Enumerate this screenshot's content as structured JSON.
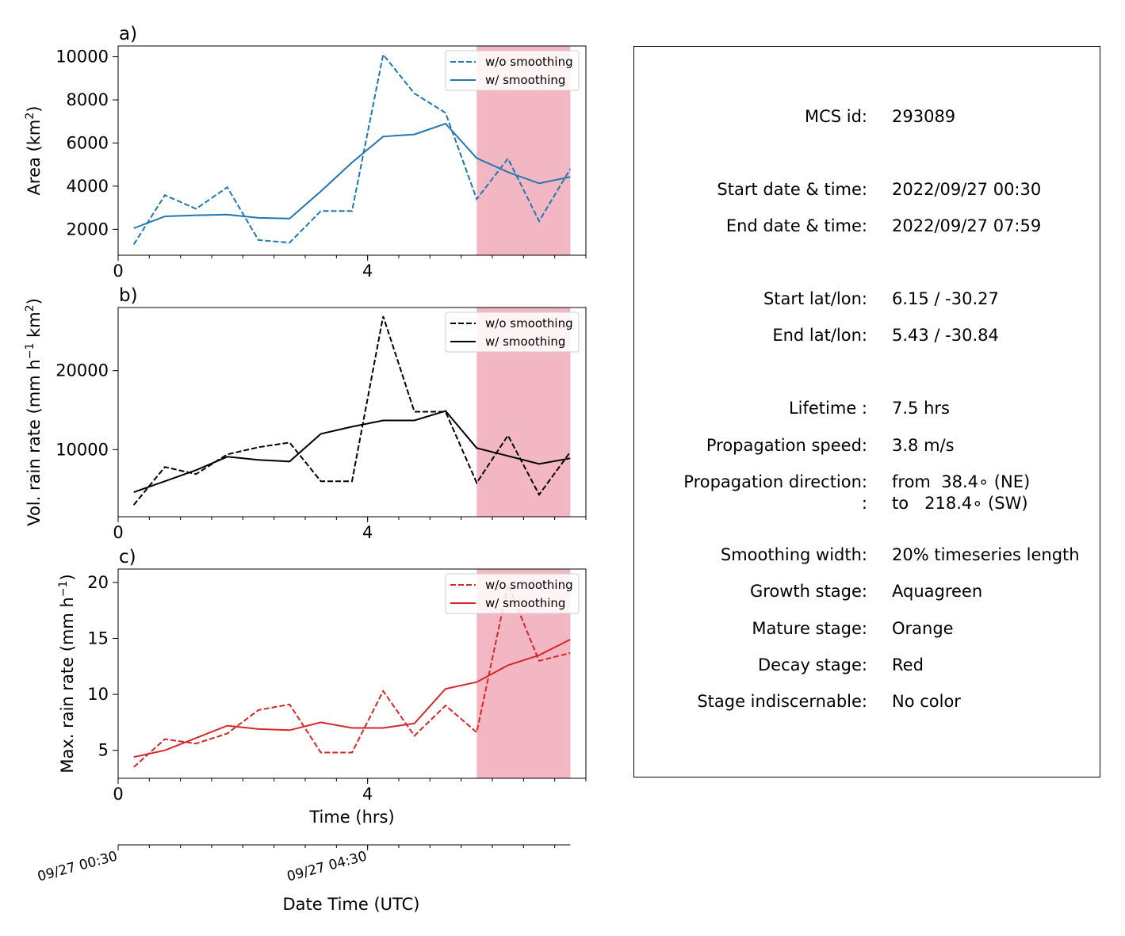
{
  "chart_data": [
    {
      "type": "line",
      "panel": "a)",
      "xlabel": "",
      "ylabel": "Area  (km²)",
      "xlim": [
        0,
        7.5
      ],
      "ylim": [
        800,
        10500
      ],
      "xticks": [
        0,
        4
      ],
      "yticks": [
        2000,
        4000,
        6000,
        8000,
        10000
      ],
      "x_minor_tick_step": 0.5,
      "shaded_x_range": [
        5.75,
        7.25
      ],
      "shade_color": "#f3b7c3",
      "legend": "top-right",
      "x": [
        0.25,
        0.75,
        1.25,
        1.75,
        2.25,
        2.75,
        3.25,
        3.75,
        4.25,
        4.75,
        5.25,
        5.75,
        6.25,
        6.75,
        7.25
      ],
      "series": [
        {
          "name": "w/o smoothing",
          "style": "dashed",
          "color": "#1f77b4",
          "values": [
            1300,
            3580,
            2950,
            3950,
            1500,
            1380,
            2850,
            2850,
            10100,
            8300,
            7400,
            3400,
            5280,
            2380,
            4800
          ]
        },
        {
          "name": "w/ smoothing",
          "style": "solid",
          "color": "#1f77b4",
          "values": [
            2050,
            2600,
            2650,
            2680,
            2530,
            2500,
            3760,
            5100,
            6300,
            6400,
            6900,
            5300,
            4650,
            4130,
            4430
          ]
        }
      ]
    },
    {
      "type": "line",
      "panel": "b)",
      "xlabel": "",
      "ylabel": "Vol. rain rate (mm h⁻¹ km²)",
      "xlim": [
        0,
        7.5
      ],
      "ylim": [
        1500,
        28000
      ],
      "xticks": [
        0,
        4
      ],
      "yticks": [
        10000,
        20000
      ],
      "x_minor_tick_step": 0.5,
      "shaded_x_range": [
        5.75,
        7.25
      ],
      "shade_color": "#f3b7c3",
      "legend": "top-right",
      "x": [
        0.25,
        0.75,
        1.25,
        1.75,
        2.25,
        2.75,
        3.25,
        3.75,
        4.25,
        4.75,
        5.25,
        5.75,
        6.25,
        6.75,
        7.25
      ],
      "series": [
        {
          "name": "w/o smoothing",
          "style": "dashed",
          "color": "#000000",
          "values": [
            3000,
            7800,
            6900,
            9400,
            10300,
            10900,
            6000,
            6000,
            26900,
            14800,
            14800,
            5800,
            11800,
            4300,
            9700
          ]
        },
        {
          "name": "w/ smoothing",
          "style": "solid",
          "color": "#000000",
          "values": [
            4600,
            6000,
            7400,
            9100,
            8700,
            8500,
            12000,
            12900,
            13700,
            13700,
            14900,
            10200,
            9200,
            8200,
            8900
          ]
        }
      ]
    },
    {
      "type": "line",
      "panel": "c)",
      "xlabel": "Time (hrs)",
      "ylabel": "Max. rain rate  (mm h⁻¹)",
      "xlim": [
        0,
        7.5
      ],
      "ylim": [
        2.5,
        21.2
      ],
      "xticks": [
        0,
        4
      ],
      "yticks": [
        5,
        10,
        15,
        20
      ],
      "x_minor_tick_step": 0.5,
      "shaded_x_range": [
        5.75,
        7.25
      ],
      "shade_color": "#f3b7c3",
      "legend": "top-right",
      "x": [
        0.25,
        0.75,
        1.25,
        1.75,
        2.25,
        2.75,
        3.25,
        3.75,
        4.25,
        4.75,
        5.25,
        5.75,
        6.25,
        6.75,
        7.25
      ],
      "series": [
        {
          "name": "w/o smoothing",
          "style": "dashed",
          "color": "#d62728",
          "values": [
            3.5,
            6.0,
            5.6,
            6.5,
            8.6,
            9.1,
            4.8,
            4.8,
            10.3,
            6.3,
            9.0,
            6.6,
            19.8,
            13.0,
            13.7
          ]
        },
        {
          "name": "w/ smoothing",
          "style": "solid",
          "color": "#d62728",
          "values": [
            4.4,
            5.0,
            6.1,
            7.2,
            6.9,
            6.8,
            7.5,
            7.0,
            7.0,
            7.4,
            10.5,
            11.1,
            12.6,
            13.5,
            14.9
          ]
        }
      ]
    }
  ],
  "date_axis": {
    "label": "Date Time (UTC)",
    "xlim": [
      0,
      7.25
    ],
    "ticks": [
      {
        "x": 0,
        "label": "09/27 00:30"
      },
      {
        "x": 4,
        "label": "09/27 04:30"
      }
    ],
    "minor_tick_step": 0.5
  },
  "info": {
    "rows": [
      {
        "key": "mcs_id",
        "label": "MCS id:",
        "value": "293089"
      },
      {
        "key": "start_datetime",
        "label": "Start date & time:",
        "value": "2022/09/27 00:30"
      },
      {
        "key": "end_datetime",
        "label": "End date & time:",
        "value": "2022/09/27 07:59"
      },
      {
        "key": "start_latlon",
        "label": "Start lat/lon:",
        "value": "6.15 / -30.27"
      },
      {
        "key": "end_latlon",
        "label": "End lat/lon:",
        "value": "5.43 / -30.84"
      },
      {
        "key": "lifetime",
        "label": "Lifetime :",
        "value": "7.5 hrs"
      },
      {
        "key": "prop_speed",
        "label": "Propagation speed:",
        "value": "3.8 m/s"
      },
      {
        "key": "prop_dir_from",
        "label": "Propagation direction:",
        "value": "from  38.4∘ (NE)"
      },
      {
        "key": "prop_dir_to",
        "label": ":",
        "value": "to   218.4∘ (SW)"
      },
      {
        "key": "smoothing",
        "label": "Smoothing width:",
        "value": "20% timeseries length"
      },
      {
        "key": "growth",
        "label": "Growth stage:",
        "value": "Aquagreen"
      },
      {
        "key": "mature",
        "label": "Mature stage:",
        "value": "Orange"
      },
      {
        "key": "decay",
        "label": "Decay stage:",
        "value": "Red"
      },
      {
        "key": "indiscernable",
        "label": "Stage indiscernable:",
        "value": "No color"
      }
    ]
  }
}
